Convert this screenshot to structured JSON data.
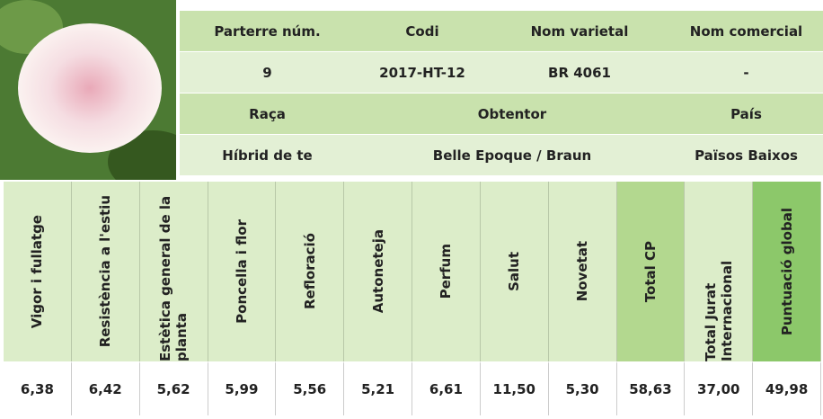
{
  "info": {
    "labels_1": [
      "Parterre núm.",
      "Codi",
      "Nom varietal",
      "Nom comercial"
    ],
    "values_1": [
      "9",
      "2017-HT-12",
      "BR 4061",
      "-"
    ],
    "labels_2": [
      "Raça",
      "Obtentor",
      "País"
    ],
    "values_2": [
      "Híbrid de te",
      "Belle Epoque / Braun",
      "Països Baixos"
    ]
  },
  "scores": {
    "columns": [
      "Vigor i fullatge",
      "Resistència a l'estiu",
      "Estètica general de la planta",
      "Poncella i flor",
      "Refloració",
      "Autoneteja",
      "Perfum",
      "Salut",
      "Novetat",
      "Total CP",
      "Total Jurat Internacional",
      "Puntuació global"
    ],
    "values": [
      "6,38",
      "6,42",
      "5,62",
      "5,99",
      "5,56",
      "5,21",
      "6,61",
      "11,50",
      "5,30",
      "58,63",
      "37,00",
      "49,98"
    ]
  }
}
